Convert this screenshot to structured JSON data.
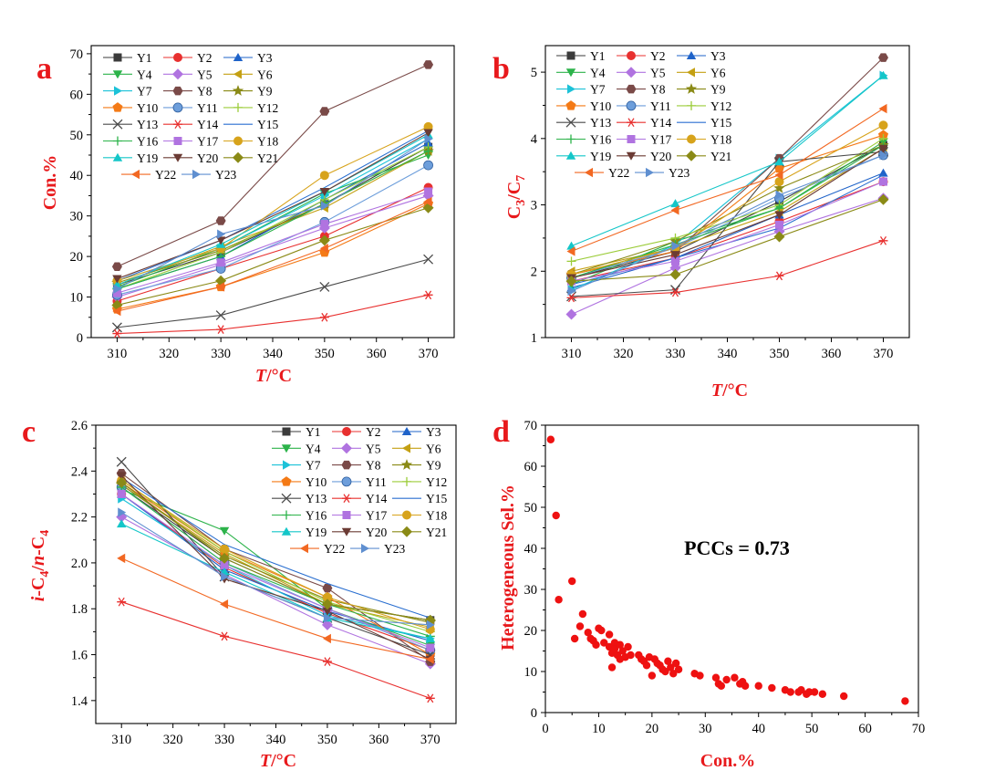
{
  "figure": {
    "colors": {
      "axis_title": "#e8191c",
      "panel_letter": "#e8191c",
      "scatter": "#ee1111"
    },
    "series_styles": [
      {
        "name": "Y1",
        "color": "#3b3b3b",
        "marker": "square"
      },
      {
        "name": "Y2",
        "color": "#e8302f",
        "marker": "circle"
      },
      {
        "name": "Y3",
        "color": "#1f63c9",
        "marker": "triangle-up"
      },
      {
        "name": "Y4",
        "color": "#2cb34a",
        "marker": "triangle-down"
      },
      {
        "name": "Y5",
        "color": "#b073e0",
        "marker": "diamond"
      },
      {
        "name": "Y6",
        "color": "#c4a013",
        "marker": "triangle-left"
      },
      {
        "name": "Y7",
        "color": "#1cc2d8",
        "marker": "triangle-right"
      },
      {
        "name": "Y8",
        "color": "#7a4a48",
        "marker": "hexagon"
      },
      {
        "name": "Y9",
        "color": "#8a8a16",
        "marker": "star"
      },
      {
        "name": "Y10",
        "color": "#f47a16",
        "marker": "pentagon"
      },
      {
        "name": "Y11",
        "color": "#6d9edb",
        "marker": "sphere"
      },
      {
        "name": "Y12",
        "color": "#9ccc3a",
        "marker": "plus"
      },
      {
        "name": "Y13",
        "color": "#4a4a4a",
        "marker": "cross"
      },
      {
        "name": "Y14",
        "color": "#e8302f",
        "marker": "asterisk"
      },
      {
        "name": "Y15",
        "color": "#2a6fd0",
        "marker": "line"
      },
      {
        "name": "Y16",
        "color": "#2cb34a",
        "marker": "plus"
      },
      {
        "name": "Y17",
        "color": "#b073e0",
        "marker": "square"
      },
      {
        "name": "Y18",
        "color": "#d7a31b",
        "marker": "circle"
      },
      {
        "name": "Y19",
        "color": "#14c6c8",
        "marker": "triangle-up"
      },
      {
        "name": "Y20",
        "color": "#6b3b34",
        "marker": "triangle-down"
      },
      {
        "name": "Y21",
        "color": "#8a8a16",
        "marker": "diamond"
      },
      {
        "name": "Y22",
        "color": "#f26822",
        "marker": "triangle-left"
      },
      {
        "name": "Y23",
        "color": "#5f8fd0",
        "marker": "triangle-right"
      }
    ]
  },
  "chart_data": [
    {
      "id": "a",
      "type": "line",
      "panel_label": "a",
      "xlabel_italic": "T",
      "xlabel_unit": "/°C",
      "ylabel": "Con.%",
      "xlim": [
        305,
        375
      ],
      "ylim": [
        0,
        72
      ],
      "xticks": [
        310,
        320,
        330,
        340,
        350,
        360,
        370
      ],
      "yticks": [
        0,
        10,
        20,
        30,
        40,
        50,
        60,
        70
      ],
      "x": [
        310,
        330,
        350,
        370
      ],
      "legend_position": "top-left",
      "series": [
        {
          "name": "Y1",
          "values": [
            13.0,
            21.0,
            33.0,
            47.0
          ]
        },
        {
          "name": "Y2",
          "values": [
            9.0,
            17.0,
            25.0,
            37.0
          ]
        },
        {
          "name": "Y3",
          "values": [
            12.0,
            20.0,
            34.0,
            48.0
          ]
        },
        {
          "name": "Y4",
          "values": [
            12.5,
            22.0,
            35.5,
            45.0
          ]
        },
        {
          "name": "Y5",
          "values": [
            10.0,
            18.0,
            27.0,
            35.0
          ]
        },
        {
          "name": "Y6",
          "values": [
            13.0,
            22.5,
            32.0,
            46.0
          ]
        },
        {
          "name": "Y7",
          "values": [
            14.0,
            22.0,
            35.0,
            49.0
          ]
        },
        {
          "name": "Y8",
          "values": [
            17.5,
            28.8,
            55.8,
            67.3
          ]
        },
        {
          "name": "Y9",
          "values": [
            13.5,
            21.5,
            33.0,
            46.0
          ]
        },
        {
          "name": "Y10",
          "values": [
            7.0,
            12.5,
            21.0,
            33.0
          ]
        },
        {
          "name": "Y11",
          "values": [
            10.5,
            17.0,
            28.5,
            42.5
          ]
        },
        {
          "name": "Y12",
          "values": [
            12.0,
            21.0,
            34.0,
            47.0
          ]
        },
        {
          "name": "Y13",
          "values": [
            2.5,
            5.5,
            12.5,
            19.3
          ]
        },
        {
          "name": "Y14",
          "values": [
            1.0,
            2.0,
            5.0,
            10.5
          ]
        },
        {
          "name": "Y15",
          "values": [
            14.0,
            24.0,
            37.0,
            51.0
          ]
        },
        {
          "name": "Y16",
          "values": [
            12.0,
            20.0,
            33.0,
            46.0
          ]
        },
        {
          "name": "Y17",
          "values": [
            11.0,
            18.5,
            28.0,
            36.0
          ]
        },
        {
          "name": "Y18",
          "values": [
            14.0,
            22.0,
            40.0,
            52.0
          ]
        },
        {
          "name": "Y19",
          "values": [
            13.0,
            23.0,
            36.0,
            50.0
          ]
        },
        {
          "name": "Y20",
          "values": [
            14.5,
            24.0,
            36.0,
            50.5
          ]
        },
        {
          "name": "Y21",
          "values": [
            8.0,
            14.0,
            24.0,
            32.0
          ]
        },
        {
          "name": "Y22",
          "values": [
            6.5,
            12.5,
            22.0,
            33.5
          ]
        },
        {
          "name": "Y23",
          "values": [
            12.0,
            25.5,
            32.5,
            49.0
          ]
        }
      ]
    },
    {
      "id": "b",
      "type": "line",
      "panel_label": "b",
      "xlabel_italic": "T",
      "xlabel_unit": "/°C",
      "ylabel_main": "C",
      "ylabel_sub1": "3",
      "ylabel_mid": "/C",
      "ylabel_sub2": "7",
      "xlim": [
        305,
        375
      ],
      "ylim": [
        1,
        5.4
      ],
      "xticks": [
        310,
        320,
        330,
        340,
        350,
        360,
        370
      ],
      "yticks": [
        1,
        2,
        3,
        4,
        5
      ],
      "x": [
        310,
        330,
        350,
        370
      ],
      "legend_position": "top-left",
      "series": [
        {
          "name": "Y1",
          "values": [
            1.9,
            2.3,
            3.05,
            3.9
          ]
        },
        {
          "name": "Y2",
          "values": [
            1.85,
            2.2,
            2.75,
            3.35
          ]
        },
        {
          "name": "Y3",
          "values": [
            1.75,
            2.2,
            2.85,
            3.48
          ]
        },
        {
          "name": "Y4",
          "values": [
            1.8,
            2.45,
            2.95,
            3.95
          ]
        },
        {
          "name": "Y5",
          "values": [
            1.35,
            2.05,
            2.6,
            3.1
          ]
        },
        {
          "name": "Y6",
          "values": [
            2.0,
            2.35,
            2.9,
            3.85
          ]
        },
        {
          "name": "Y7",
          "values": [
            1.72,
            2.4,
            3.7,
            4.95
          ]
        },
        {
          "name": "Y8",
          "values": [
            1.95,
            2.3,
            3.7,
            5.22
          ]
        },
        {
          "name": "Y9",
          "values": [
            1.95,
            2.45,
            3.25,
            3.9
          ]
        },
        {
          "name": "Y10",
          "values": [
            1.95,
            2.3,
            3.55,
            4.05
          ]
        },
        {
          "name": "Y11",
          "values": [
            1.9,
            2.35,
            3.1,
            3.75
          ]
        },
        {
          "name": "Y12",
          "values": [
            2.15,
            2.5,
            3.0,
            4.0
          ]
        },
        {
          "name": "Y13",
          "values": [
            1.62,
            1.72,
            3.65,
            3.8
          ]
        },
        {
          "name": "Y14",
          "values": [
            1.6,
            1.68,
            1.93,
            2.46
          ]
        },
        {
          "name": "Y15",
          "values": [
            1.8,
            2.2,
            2.65,
            3.45
          ]
        },
        {
          "name": "Y16",
          "values": [
            1.9,
            2.4,
            2.95,
            3.9
          ]
        },
        {
          "name": "Y17",
          "values": [
            1.85,
            2.15,
            2.7,
            3.35
          ]
        },
        {
          "name": "Y18",
          "values": [
            1.95,
            2.35,
            3.35,
            4.2
          ]
        },
        {
          "name": "Y19",
          "values": [
            2.38,
            3.02,
            3.65,
            4.95
          ]
        },
        {
          "name": "Y20",
          "values": [
            1.9,
            2.25,
            2.85,
            3.85
          ]
        },
        {
          "name": "Y21",
          "values": [
            1.85,
            1.95,
            2.52,
            3.08
          ]
        },
        {
          "name": "Y22",
          "values": [
            2.3,
            2.92,
            3.45,
            4.45
          ]
        },
        {
          "name": "Y23",
          "values": [
            1.7,
            2.38,
            3.15,
            3.75
          ]
        }
      ]
    },
    {
      "id": "c",
      "type": "line",
      "panel_label": "c",
      "xlabel_italic": "T",
      "xlabel_unit": "/°C",
      "ylabel_a": "i",
      "ylabel_b": "-C",
      "ylabel_c": "4",
      "ylabel_d": "/",
      "ylabel_e": "n",
      "ylabel_f": "-C",
      "ylabel_g": "4",
      "xlim": [
        305,
        375
      ],
      "ylim": [
        1.3,
        2.6
      ],
      "xticks": [
        310,
        320,
        330,
        340,
        350,
        360,
        370
      ],
      "yticks": [
        1.4,
        1.6,
        1.8,
        2.0,
        2.2,
        2.4,
        2.6
      ],
      "x": [
        310,
        330,
        350,
        370
      ],
      "legend_position": "top-right",
      "series": [
        {
          "name": "Y1",
          "values": [
            2.33,
            2.02,
            1.82,
            1.75
          ]
        },
        {
          "name": "Y2",
          "values": [
            2.3,
            1.98,
            1.78,
            1.62
          ]
        },
        {
          "name": "Y3",
          "values": [
            2.3,
            1.97,
            1.79,
            1.66
          ]
        },
        {
          "name": "Y4",
          "values": [
            2.32,
            2.14,
            1.8,
            1.64
          ]
        },
        {
          "name": "Y5",
          "values": [
            2.2,
            1.95,
            1.73,
            1.56
          ]
        },
        {
          "name": "Y6",
          "values": [
            2.34,
            2.04,
            1.82,
            1.72
          ]
        },
        {
          "name": "Y7",
          "values": [
            2.28,
            1.99,
            1.77,
            1.67
          ]
        },
        {
          "name": "Y8",
          "values": [
            2.39,
            2.06,
            1.89,
            1.57
          ]
        },
        {
          "name": "Y9",
          "values": [
            2.34,
            2.03,
            1.84,
            1.74
          ]
        },
        {
          "name": "Y10",
          "values": [
            2.35,
            2.05,
            1.85,
            1.6
          ]
        },
        {
          "name": "Y11",
          "values": [
            2.33,
            2.0,
            1.8,
            1.62
          ]
        },
        {
          "name": "Y12",
          "values": [
            2.36,
            2.05,
            1.83,
            1.7
          ]
        },
        {
          "name": "Y13",
          "values": [
            2.44,
            1.94,
            1.76,
            1.6
          ]
        },
        {
          "name": "Y14",
          "values": [
            1.83,
            1.68,
            1.57,
            1.41
          ]
        },
        {
          "name": "Y15",
          "values": [
            2.37,
            2.08,
            1.91,
            1.76
          ]
        },
        {
          "name": "Y16",
          "values": [
            2.33,
            2.0,
            1.82,
            1.68
          ]
        },
        {
          "name": "Y17",
          "values": [
            2.3,
            1.99,
            1.8,
            1.63
          ]
        },
        {
          "name": "Y18",
          "values": [
            2.36,
            2.06,
            1.85,
            1.71
          ]
        },
        {
          "name": "Y19",
          "values": [
            2.17,
            1.96,
            1.76,
            1.67
          ]
        },
        {
          "name": "Y20",
          "values": [
            2.38,
            1.93,
            1.79,
            1.58
          ]
        },
        {
          "name": "Y21",
          "values": [
            2.35,
            2.02,
            1.82,
            1.75
          ]
        },
        {
          "name": "Y22",
          "values": [
            2.02,
            1.82,
            1.67,
            1.58
          ]
        },
        {
          "name": "Y23",
          "values": [
            2.22,
            1.94,
            1.76,
            1.73
          ]
        }
      ]
    },
    {
      "id": "d",
      "type": "scatter",
      "panel_label": "d",
      "xlabel": "Con.%",
      "ylabel": "Heterogeneous Sel.%",
      "annotation": "PCCs = 0.73",
      "xlim": [
        0,
        70
      ],
      "ylim": [
        0,
        70
      ],
      "xticks": [
        0,
        10,
        20,
        30,
        40,
        50,
        60,
        70
      ],
      "yticks": [
        0,
        10,
        20,
        30,
        40,
        50,
        60,
        70
      ],
      "points": [
        [
          1.0,
          66.5
        ],
        [
          2.0,
          48.0
        ],
        [
          2.5,
          27.5
        ],
        [
          5.0,
          32.0
        ],
        [
          5.5,
          18.0
        ],
        [
          6.5,
          21.0
        ],
        [
          7.0,
          24.0
        ],
        [
          8.0,
          19.5
        ],
        [
          8.5,
          18.0
        ],
        [
          9.0,
          17.5
        ],
        [
          9.5,
          16.5
        ],
        [
          10.0,
          20.5
        ],
        [
          10.5,
          20.0
        ],
        [
          11.0,
          17.0
        ],
        [
          12.0,
          19.0
        ],
        [
          12.0,
          16.0
        ],
        [
          12.5,
          14.5
        ],
        [
          12.5,
          11.0
        ],
        [
          13.0,
          17.0
        ],
        [
          13.0,
          15.5
        ],
        [
          13.5,
          14.0
        ],
        [
          14.0,
          16.5
        ],
        [
          14.0,
          13.0
        ],
        [
          14.5,
          15.0
        ],
        [
          15.0,
          13.5
        ],
        [
          15.5,
          16.0
        ],
        [
          16.0,
          14.0
        ],
        [
          17.5,
          14.0
        ],
        [
          18.0,
          13.0
        ],
        [
          18.5,
          12.5
        ],
        [
          19.0,
          11.5
        ],
        [
          19.5,
          13.5
        ],
        [
          20.0,
          9.0
        ],
        [
          20.5,
          13.0
        ],
        [
          21.0,
          12.0
        ],
        [
          21.5,
          11.5
        ],
        [
          22.0,
          10.5
        ],
        [
          22.5,
          10.0
        ],
        [
          23.0,
          12.5
        ],
        [
          23.5,
          11.0
        ],
        [
          24.0,
          9.5
        ],
        [
          24.5,
          12.0
        ],
        [
          25.0,
          10.5
        ],
        [
          28.0,
          9.5
        ],
        [
          29.0,
          9.0
        ],
        [
          32.0,
          8.5
        ],
        [
          32.5,
          7.0
        ],
        [
          33.0,
          6.5
        ],
        [
          34.0,
          8.0
        ],
        [
          35.5,
          8.5
        ],
        [
          36.5,
          7.0
        ],
        [
          37.0,
          7.5
        ],
        [
          37.5,
          6.5
        ],
        [
          40.0,
          6.5
        ],
        [
          42.5,
          6.0
        ],
        [
          45.0,
          5.5
        ],
        [
          46.0,
          5.0
        ],
        [
          47.5,
          5.0
        ],
        [
          48.0,
          5.5
        ],
        [
          49.0,
          4.5
        ],
        [
          49.5,
          5.0
        ],
        [
          50.5,
          5.0
        ],
        [
          52.0,
          4.5
        ],
        [
          56.0,
          4.0
        ],
        [
          67.5,
          2.8
        ]
      ]
    }
  ]
}
